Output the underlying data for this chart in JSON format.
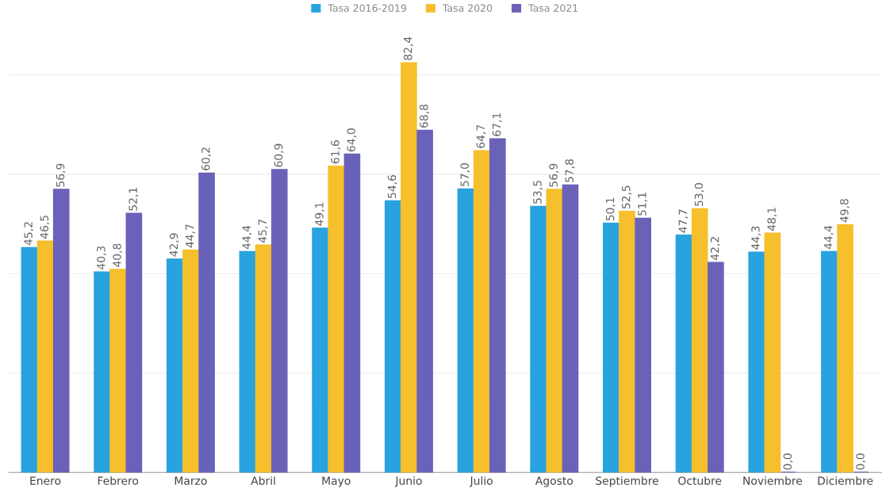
{
  "chart_data": {
    "type": "bar",
    "categories": [
      "Enero",
      "Febrero",
      "Marzo",
      "Abril",
      "Mayo",
      "Junio",
      "Julio",
      "Agosto",
      "Septiembre",
      "Octubre",
      "Noviembre",
      "Diciembre"
    ],
    "series": [
      {
        "name": "Tasa 2016-2019",
        "color": "#29a3e0",
        "values": [
          45.2,
          40.3,
          42.9,
          44.4,
          49.1,
          54.6,
          57.0,
          53.5,
          50.1,
          47.7,
          44.3,
          44.4
        ],
        "value_labels": [
          "45,2",
          "40,3",
          "42,9",
          "44,4",
          "49,1",
          "54,6",
          "57,0",
          "53,5",
          "50,1",
          "47,7",
          "44,3",
          "44,4"
        ]
      },
      {
        "name": "Tasa 2020",
        "color": "#f6bf2c",
        "values": [
          46.5,
          40.8,
          44.7,
          45.7,
          61.6,
          82.4,
          64.7,
          56.9,
          52.5,
          53.0,
          48.1,
          49.8
        ],
        "value_labels": [
          "46,5",
          "40,8",
          "44,7",
          "45,7",
          "61,6",
          "82,4",
          "64,7",
          "56,9",
          "52,5",
          "53,0",
          "48,1",
          "49,8"
        ]
      },
      {
        "name": "Tasa 2021",
        "color": "#6a62b8",
        "values": [
          56.9,
          52.1,
          60.2,
          60.9,
          64.0,
          68.8,
          67.1,
          57.8,
          51.1,
          42.2,
          0.0,
          0.0
        ],
        "value_labels": [
          "56,9",
          "52,1",
          "60,2",
          "60,9",
          "64,0",
          "68,8",
          "67,1",
          "57,8",
          "51,1",
          "42,2",
          "0,0",
          "0,0"
        ]
      }
    ],
    "yticks": [
      {
        "value": 0,
        "label": null
      },
      {
        "value": 20,
        "label": null
      },
      {
        "value": 40,
        "label": null
      },
      {
        "value": 60,
        "label": null
      },
      {
        "value": 80,
        "label": null
      }
    ],
    "tick_labels": "x",
    "grid": "y",
    "legend": "top"
  }
}
